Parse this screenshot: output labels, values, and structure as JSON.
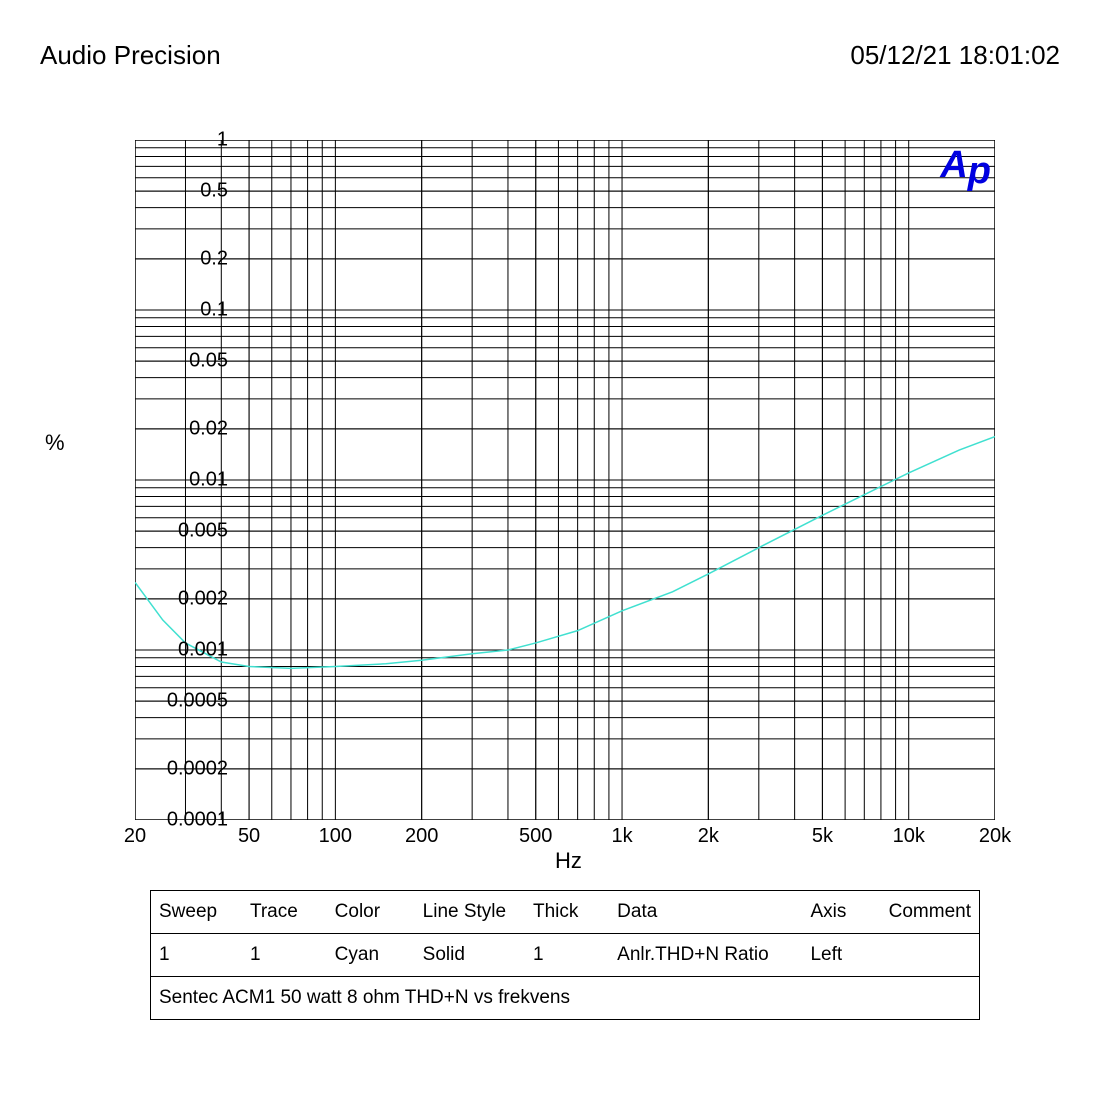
{
  "header": {
    "title": "Audio Precision",
    "timestamp": "05/12/21 18:01:02"
  },
  "chart": {
    "type": "line",
    "x_axis": {
      "label": "Hz",
      "scale": "log",
      "min": 20,
      "max": 20000,
      "ticks": [
        20,
        50,
        100,
        200,
        500,
        1000,
        2000,
        5000,
        10000,
        20000
      ],
      "tick_labels": [
        "20",
        "50",
        "100",
        "200",
        "500",
        "1k",
        "2k",
        "5k",
        "10k",
        "20k"
      ]
    },
    "y_axis": {
      "label": "%",
      "scale": "log",
      "min": 0.0001,
      "max": 1,
      "ticks": [
        0.0001,
        0.0002,
        0.0005,
        0.001,
        0.002,
        0.005,
        0.01,
        0.02,
        0.05,
        0.1,
        0.2,
        0.5,
        1
      ],
      "tick_labels": [
        "0.0001",
        "0.0002",
        "0.0005",
        "0.001",
        "0.002",
        "0.005",
        "0.01",
        "0.02",
        "0.05",
        "0.1",
        "0.2",
        "0.5",
        "1"
      ]
    },
    "series": [
      {
        "color": "#40e0d0",
        "line_width": 1.5,
        "points": [
          [
            20,
            0.0025
          ],
          [
            25,
            0.0015
          ],
          [
            30,
            0.0011
          ],
          [
            40,
            0.00085
          ],
          [
            50,
            0.0008
          ],
          [
            70,
            0.00078
          ],
          [
            100,
            0.0008
          ],
          [
            150,
            0.00083
          ],
          [
            200,
            0.00087
          ],
          [
            300,
            0.00095
          ],
          [
            400,
            0.001
          ],
          [
            500,
            0.0011
          ],
          [
            700,
            0.0013
          ],
          [
            1000,
            0.0017
          ],
          [
            1500,
            0.0022
          ],
          [
            2000,
            0.0028
          ],
          [
            3000,
            0.004
          ],
          [
            5000,
            0.0062
          ],
          [
            7000,
            0.0082
          ],
          [
            10000,
            0.011
          ],
          [
            15000,
            0.015
          ],
          [
            20000,
            0.018
          ]
        ]
      }
    ],
    "grid_color": "#000000",
    "grid_width": 1,
    "background_color": "#ffffff",
    "logo_text": "Ap"
  },
  "legend": {
    "columns": [
      "Sweep",
      "Trace",
      "Color",
      "Line Style",
      "Thick",
      "Data",
      "Axis",
      "Comment"
    ],
    "rows": [
      [
        "1",
        "1",
        "Cyan",
        "Solid",
        "1",
        "Anlr.THD+N Ratio",
        "Left",
        ""
      ]
    ],
    "caption": "Sentec ACM1 50 watt 8 ohm THD+N vs frekvens"
  },
  "fonts": {
    "header_size": 26,
    "tick_size": 20,
    "label_size": 22,
    "table_size": 19
  }
}
